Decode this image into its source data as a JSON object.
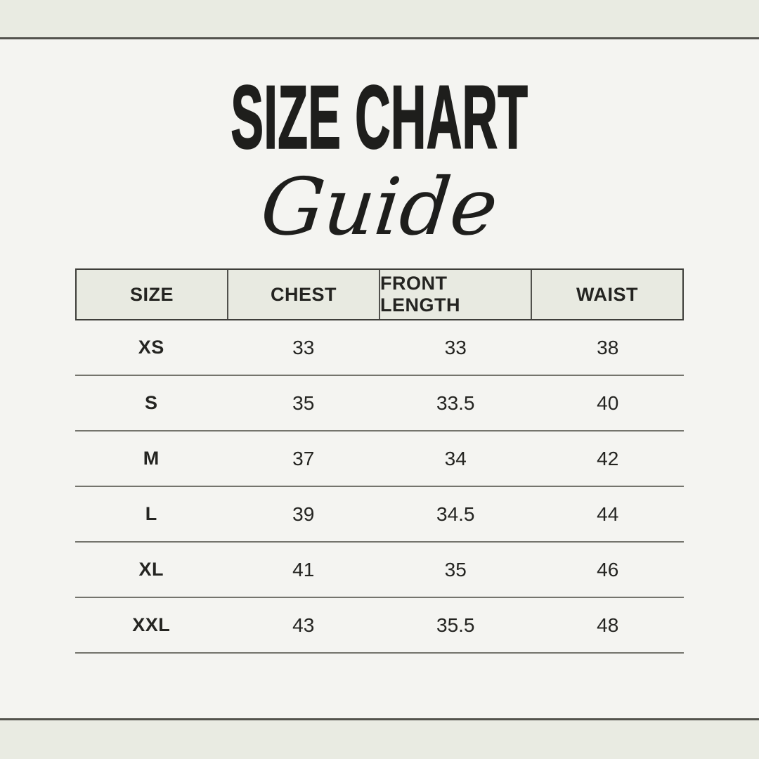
{
  "title": {
    "main": "SIZE CHART",
    "script": "Guide"
  },
  "colors": {
    "page_background": "#f4f4f1",
    "band_background": "#e9ebe2",
    "band_line": "#53534d",
    "header_background": "#e8eae1",
    "header_border": "#3e3e3a",
    "row_separator": "#74746d",
    "text": "#1e1e1c"
  },
  "chart_data": {
    "type": "table",
    "title": "SIZE CHART",
    "subtitle": "Guide",
    "columns": [
      "SIZE",
      "CHEST",
      "FRONT LENGTH",
      "WAIST"
    ],
    "rows": [
      [
        "XS",
        "33",
        "33",
        "38"
      ],
      [
        "S",
        "35",
        "33.5",
        "40"
      ],
      [
        "M",
        "37",
        "34",
        "42"
      ],
      [
        "L",
        "39",
        "34.5",
        "44"
      ],
      [
        "XL",
        "41",
        "35",
        "46"
      ],
      [
        "XXL",
        "43",
        "35.5",
        "48"
      ]
    ]
  }
}
